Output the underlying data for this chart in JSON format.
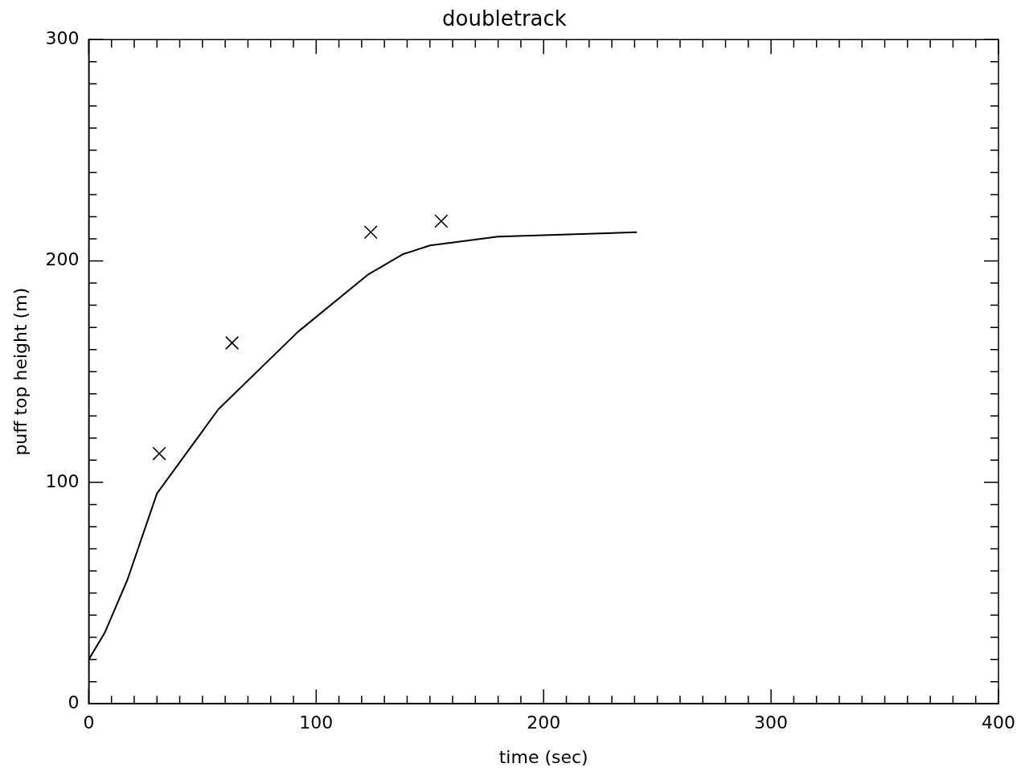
{
  "chart_data": {
    "type": "line",
    "title": "doubletrack",
    "xlabel": "time (sec)",
    "ylabel": "puff top height (m)",
    "grid": false,
    "legend": false,
    "xlim": [
      0,
      400
    ],
    "ylim": [
      0,
      300
    ],
    "xticks": [
      0,
      {
        "value": 10,
        "label": null
      },
      {
        "value": 20,
        "label": null
      },
      {
        "value": 30,
        "label": null
      },
      {
        "value": 40,
        "label": null
      },
      {
        "value": 50,
        "label": null
      },
      {
        "value": 60,
        "label": null
      },
      {
        "value": 70,
        "label": null
      },
      {
        "value": 80,
        "label": null
      },
      {
        "value": 90,
        "label": null
      },
      100,
      {
        "value": 110,
        "label": null
      },
      {
        "value": 120,
        "label": null
      },
      {
        "value": 130,
        "label": null
      },
      {
        "value": 140,
        "label": null
      },
      {
        "value": 150,
        "label": null
      },
      {
        "value": 160,
        "label": null
      },
      {
        "value": 170,
        "label": null
      },
      {
        "value": 180,
        "label": null
      },
      {
        "value": 190,
        "label": null
      },
      200,
      {
        "value": 210,
        "label": null
      },
      {
        "value": 220,
        "label": null
      },
      {
        "value": 230,
        "label": null
      },
      {
        "value": 240,
        "label": null
      },
      {
        "value": 250,
        "label": null
      },
      {
        "value": 260,
        "label": null
      },
      {
        "value": 270,
        "label": null
      },
      {
        "value": 280,
        "label": null
      },
      {
        "value": 290,
        "label": null
      },
      300,
      {
        "value": 310,
        "label": null
      },
      {
        "value": 320,
        "label": null
      },
      {
        "value": 330,
        "label": null
      },
      {
        "value": 340,
        "label": null
      },
      {
        "value": 350,
        "label": null
      },
      {
        "value": 360,
        "label": null
      },
      {
        "value": 370,
        "label": null
      },
      {
        "value": 380,
        "label": null
      },
      {
        "value": 390,
        "label": null
      },
      400
    ],
    "yticks": [
      0,
      {
        "value": 10,
        "label": null
      },
      {
        "value": 20,
        "label": null
      },
      {
        "value": 30,
        "label": null
      },
      {
        "value": 40,
        "label": null
      },
      {
        "value": 50,
        "label": null
      },
      {
        "value": 60,
        "label": null
      },
      {
        "value": 70,
        "label": null
      },
      {
        "value": 80,
        "label": null
      },
      {
        "value": 90,
        "label": null
      },
      100,
      {
        "value": 110,
        "label": null
      },
      {
        "value": 120,
        "label": null
      },
      {
        "value": 130,
        "label": null
      },
      {
        "value": 140,
        "label": null
      },
      {
        "value": 150,
        "label": null
      },
      {
        "value": 160,
        "label": null
      },
      {
        "value": 170,
        "label": null
      },
      {
        "value": 180,
        "label": null
      },
      {
        "value": 190,
        "label": null
      },
      200,
      {
        "value": 210,
        "label": null
      },
      {
        "value": 220,
        "label": null
      },
      {
        "value": 230,
        "label": null
      },
      {
        "value": 240,
        "label": null
      },
      {
        "value": 250,
        "label": null
      },
      {
        "value": 260,
        "label": null
      },
      {
        "value": 270,
        "label": null
      },
      {
        "value": 280,
        "label": null
      },
      {
        "value": 290,
        "label": null
      },
      300
    ],
    "series": [
      {
        "color": "#000000",
        "marker": "none",
        "line_style": "solid",
        "x": [
          0,
          7,
          17,
          30,
          57,
          92,
          123,
          138,
          150,
          180,
          241
        ],
        "values": [
          20,
          32,
          56,
          95,
          133,
          168,
          194,
          203,
          207,
          211,
          213
        ]
      },
      {
        "type": "scatter",
        "color": "#000000",
        "marker": "cross",
        "x": [
          31,
          63,
          124,
          155
        ],
        "values": [
          113,
          163,
          213,
          218
        ]
      }
    ]
  }
}
